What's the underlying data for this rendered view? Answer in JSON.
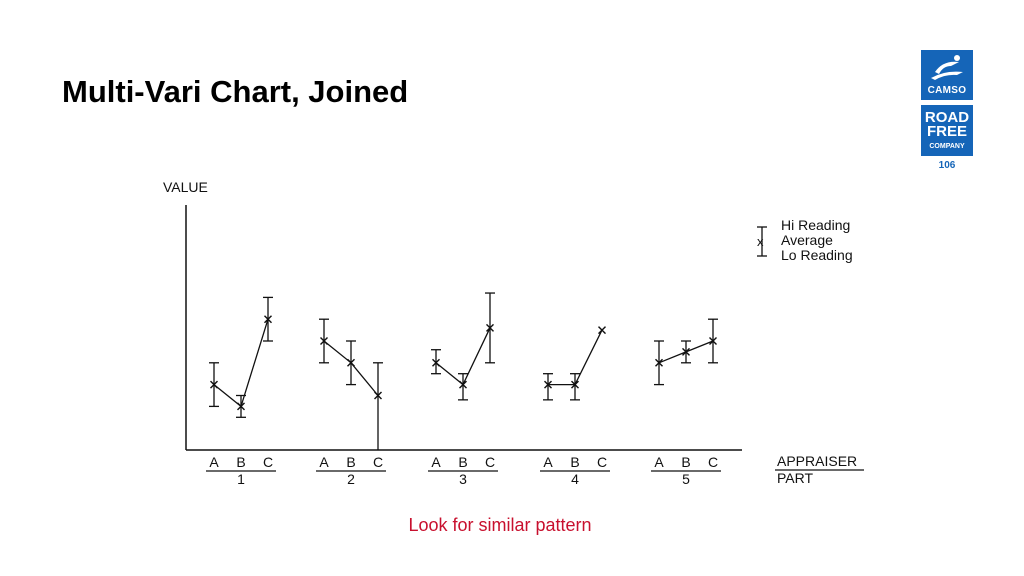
{
  "slide": {
    "title": "Multi-Vari Chart, Joined",
    "page_number": "106",
    "caption": "Look for similar pattern",
    "caption_color": "#c8102e",
    "brand_color": "#1565b8"
  },
  "logo": {
    "brand": "CAMSO",
    "tagline_lines": [
      "ROAD",
      "FREE"
    ],
    "tagline_sub": "COMPANY"
  },
  "chart_data": {
    "type": "line",
    "ylabel": "VALUE",
    "xlabel_top": "APPRAISER",
    "xlabel_bottom": "PART",
    "appraisers": [
      "A",
      "B",
      "C"
    ],
    "parts": [
      "1",
      "2",
      "3",
      "4",
      "5"
    ],
    "ylim": [
      0,
      10
    ],
    "legend": {
      "position": "top-right",
      "hi_label": "Hi Reading",
      "avg_label": "Average",
      "lo_label": "Lo Reading"
    },
    "groups": [
      {
        "part": "1",
        "points": [
          {
            "appraiser": "A",
            "hi": 4.0,
            "avg": 3.0,
            "lo": 2.0
          },
          {
            "appraiser": "B",
            "hi": 2.5,
            "avg": 2.0,
            "lo": 1.5
          },
          {
            "appraiser": "C",
            "hi": 7.0,
            "avg": 6.0,
            "lo": 5.0
          }
        ]
      },
      {
        "part": "2",
        "points": [
          {
            "appraiser": "A",
            "hi": 6.0,
            "avg": 5.0,
            "lo": 4.0
          },
          {
            "appraiser": "B",
            "hi": 5.0,
            "avg": 4.0,
            "lo": 3.0
          },
          {
            "appraiser": "C",
            "hi": 4.0,
            "avg": 2.5,
            "lo": 0.0
          }
        ]
      },
      {
        "part": "3",
        "points": [
          {
            "appraiser": "A",
            "hi": 4.6,
            "avg": 4.0,
            "lo": 3.5
          },
          {
            "appraiser": "B",
            "hi": 3.5,
            "avg": 3.0,
            "lo": 2.3
          },
          {
            "appraiser": "C",
            "hi": 7.2,
            "avg": 5.6,
            "lo": 4.0
          }
        ]
      },
      {
        "part": "4",
        "points": [
          {
            "appraiser": "A",
            "hi": 3.5,
            "avg": 3.0,
            "lo": 2.3
          },
          {
            "appraiser": "B",
            "hi": 3.5,
            "avg": 3.0,
            "lo": 2.3
          },
          {
            "appraiser": "C",
            "hi": 5.5,
            "avg": 5.5,
            "lo": 5.5
          }
        ]
      },
      {
        "part": "5",
        "points": [
          {
            "appraiser": "A",
            "hi": 5.0,
            "avg": 4.0,
            "lo": 3.0
          },
          {
            "appraiser": "B",
            "hi": 5.0,
            "avg": 4.5,
            "lo": 4.0
          },
          {
            "appraiser": "C",
            "hi": 6.0,
            "avg": 5.0,
            "lo": 4.0
          }
        ]
      }
    ]
  }
}
